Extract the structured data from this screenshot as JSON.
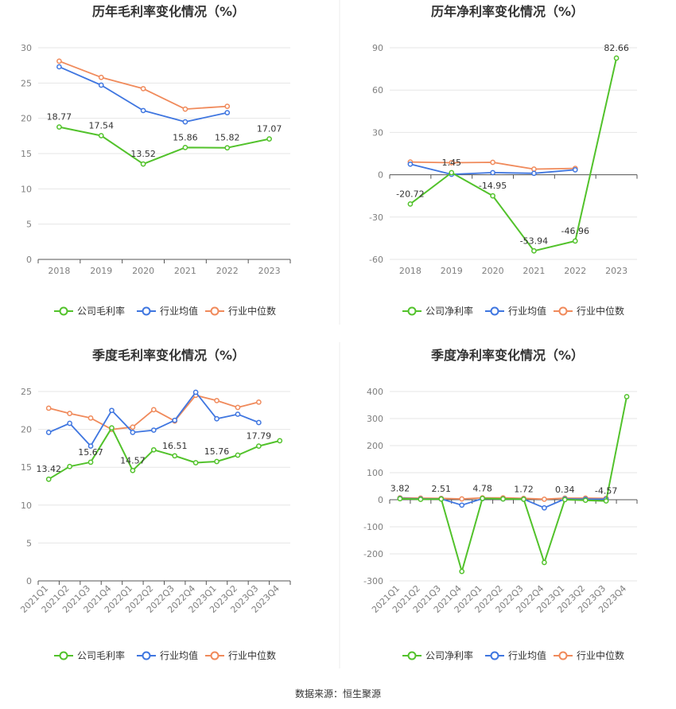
{
  "colors": {
    "company": "#52c22b",
    "avg": "#3f76e0",
    "median": "#f08a5b",
    "grid": "#e6e6e6",
    "axis": "#555555"
  },
  "legend_labels": {
    "gross": [
      "公司毛利率",
      "行业均值",
      "行业中位数"
    ],
    "net": [
      "公司净利率",
      "行业均值",
      "行业中位数"
    ]
  },
  "source": "数据来源：恒生聚源",
  "chart_data": [
    {
      "type": "line",
      "title": "历年毛利率变化情况（%）",
      "categories": [
        "2018",
        "2019",
        "2020",
        "2021",
        "2022",
        "2023"
      ],
      "ylim": [
        0,
        30
      ],
      "yticks": [
        0,
        5,
        10,
        15,
        20,
        25,
        30
      ],
      "legend": "bottom",
      "grid": true,
      "series": [
        {
          "name": "公司毛利率",
          "values": [
            18.77,
            17.54,
            13.52,
            15.86,
            15.82,
            17.07
          ],
          "labels": [
            "18.77",
            "17.54",
            "13.52",
            "15.86",
            "15.82",
            "17.07"
          ]
        },
        {
          "name": "行业均值",
          "values": [
            27.3,
            24.7,
            21.1,
            19.5,
            20.8,
            null
          ]
        },
        {
          "name": "行业中位数",
          "values": [
            28.1,
            25.8,
            24.2,
            21.3,
            21.7,
            null
          ]
        }
      ]
    },
    {
      "type": "line",
      "title": "历年净利率变化情况（%）",
      "categories": [
        "2018",
        "2019",
        "2020",
        "2021",
        "2022",
        "2023"
      ],
      "ylim": [
        -60,
        90
      ],
      "yticks": [
        -60,
        -30,
        0,
        30,
        60,
        90
      ],
      "legend": "bottom",
      "grid": true,
      "series": [
        {
          "name": "公司净利率",
          "values": [
            -20.72,
            1.45,
            -14.95,
            -53.94,
            -46.96,
            82.66
          ],
          "labels": [
            "-20.72",
            "1.45",
            "-14.95",
            "-53.94",
            "-46.96",
            "82.66"
          ]
        },
        {
          "name": "行业均值",
          "values": [
            7.5,
            0.3,
            1.5,
            1.0,
            3.5,
            null
          ]
        },
        {
          "name": "行业中位数",
          "values": [
            9.0,
            8.5,
            8.8,
            4.0,
            4.5,
            null
          ]
        }
      ]
    },
    {
      "type": "line",
      "title": "季度毛利率变化情况（%）",
      "categories": [
        "2021Q1",
        "2021Q2",
        "2021Q3",
        "2021Q4",
        "2022Q1",
        "2022Q2",
        "2022Q3",
        "2022Q4",
        "2023Q1",
        "2023Q2",
        "2023Q3",
        "2023Q4"
      ],
      "ylim": [
        0,
        25
      ],
      "yticks": [
        0,
        5,
        10,
        15,
        20,
        25
      ],
      "legend": "bottom",
      "grid": true,
      "series": [
        {
          "name": "公司毛利率",
          "values": [
            13.42,
            15.1,
            15.67,
            20.2,
            14.57,
            17.3,
            16.51,
            15.6,
            15.76,
            16.6,
            17.79,
            18.5
          ],
          "labels": [
            "13.42",
            "",
            "15.67",
            "",
            "14.57",
            "",
            "16.51",
            "",
            "15.76",
            "",
            "17.79",
            ""
          ]
        },
        {
          "name": "行业均值",
          "values": [
            19.6,
            20.8,
            17.8,
            22.5,
            19.6,
            19.9,
            21.2,
            24.9,
            21.4,
            22.0,
            20.9,
            null
          ]
        },
        {
          "name": "行业中位数",
          "values": [
            22.8,
            22.1,
            21.5,
            20.0,
            20.3,
            22.6,
            21.1,
            24.5,
            23.8,
            22.9,
            23.6,
            null
          ]
        }
      ]
    },
    {
      "type": "line",
      "title": "季度净利率变化情况（%）",
      "categories": [
        "2021Q1",
        "2021Q2",
        "2021Q3",
        "2021Q4",
        "2022Q1",
        "2022Q2",
        "2022Q3",
        "2022Q4",
        "2023Q1",
        "2023Q2",
        "2023Q3",
        "2023Q4"
      ],
      "ylim": [
        -300,
        400
      ],
      "yticks": [
        -300,
        -200,
        -100,
        0,
        100,
        200,
        300,
        400
      ],
      "legend": "bottom",
      "grid": true,
      "series": [
        {
          "name": "公司净利率",
          "values": [
            3.82,
            1.5,
            2.51,
            -265,
            4.78,
            3.0,
            1.72,
            -232,
            0.34,
            -2.0,
            -4.57,
            381
          ],
          "labels": [
            "3.82",
            "",
            "2.51",
            "",
            "4.78",
            "",
            "1.72",
            "",
            "0.34",
            "",
            "-4.57",
            ""
          ]
        },
        {
          "name": "行业均值",
          "values": [
            5,
            3,
            3,
            -20,
            4,
            3,
            2,
            -30,
            3,
            2,
            2,
            null
          ]
        },
        {
          "name": "行业中位数",
          "values": [
            7,
            6,
            5,
            3,
            7,
            7,
            5,
            2,
            6,
            6,
            5,
            null
          ]
        }
      ]
    }
  ]
}
